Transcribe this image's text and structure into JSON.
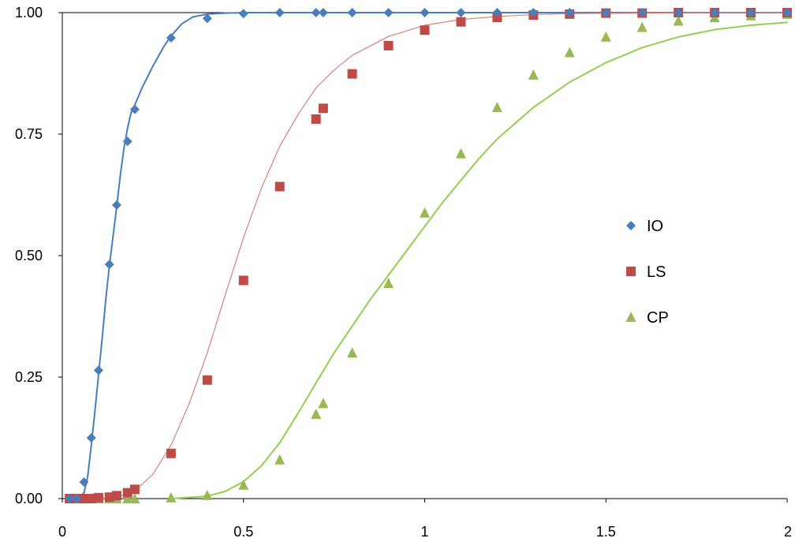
{
  "chart_data": {
    "type": "scatter",
    "title": "",
    "xlabel": "",
    "ylabel": "",
    "xlim": [
      0,
      2
    ],
    "ylim": [
      0,
      1
    ],
    "x_ticks": [
      {
        "value": 0,
        "label": "0"
      },
      {
        "value": 0.5,
        "label": "0.5"
      },
      {
        "value": 1,
        "label": "1"
      },
      {
        "value": 1.5,
        "label": "1.5"
      },
      {
        "value": 2,
        "label": "2"
      }
    ],
    "y_ticks": [
      {
        "value": 0,
        "label": "0.00"
      },
      {
        "value": 0.25,
        "label": "0.25"
      },
      {
        "value": 0.5,
        "label": "0.50"
      },
      {
        "value": 0.75,
        "label": "0.75"
      },
      {
        "value": 1,
        "label": "1.00"
      }
    ],
    "grid": {
      "horizontal_top_line": true,
      "vertical": false
    },
    "legend": {
      "position": "right-middle"
    },
    "series": [
      {
        "name": "IO",
        "marker": "diamond",
        "color": "#4A7EBB",
        "curve_color": "#4A7EBB",
        "points": [
          [
            0.02,
            0.0
          ],
          [
            0.04,
            0.0
          ],
          [
            0.06,
            0.034
          ],
          [
            0.08,
            0.125
          ],
          [
            0.1,
            0.264
          ],
          [
            0.13,
            0.482
          ],
          [
            0.15,
            0.604
          ],
          [
            0.18,
            0.735
          ],
          [
            0.2,
            0.801
          ],
          [
            0.3,
            0.948
          ],
          [
            0.4,
            0.988
          ],
          [
            0.5,
            0.998
          ],
          [
            0.6,
            1.0
          ],
          [
            0.7,
            1.0
          ],
          [
            0.72,
            1.0
          ],
          [
            0.8,
            1.0
          ],
          [
            0.9,
            1.0
          ],
          [
            1.0,
            1.0
          ],
          [
            1.1,
            1.0
          ],
          [
            1.2,
            1.0
          ],
          [
            1.3,
            1.0
          ],
          [
            1.4,
            1.0
          ],
          [
            1.5,
            1.0
          ],
          [
            1.6,
            1.0
          ],
          [
            1.7,
            1.0
          ],
          [
            1.8,
            1.0
          ],
          [
            1.9,
            1.0
          ],
          [
            2.0,
            1.0
          ]
        ],
        "curve": [
          [
            0.04,
            0.0
          ],
          [
            0.06,
            0.012
          ],
          [
            0.07,
            0.045
          ],
          [
            0.08,
            0.11
          ],
          [
            0.09,
            0.18
          ],
          [
            0.1,
            0.255
          ],
          [
            0.11,
            0.33
          ],
          [
            0.12,
            0.41
          ],
          [
            0.13,
            0.48
          ],
          [
            0.14,
            0.54
          ],
          [
            0.15,
            0.6
          ],
          [
            0.16,
            0.665
          ],
          [
            0.17,
            0.72
          ],
          [
            0.18,
            0.762
          ],
          [
            0.19,
            0.795
          ],
          [
            0.2,
            0.81
          ],
          [
            0.22,
            0.845
          ],
          [
            0.25,
            0.89
          ],
          [
            0.28,
            0.93
          ],
          [
            0.3,
            0.952
          ],
          [
            0.33,
            0.977
          ],
          [
            0.36,
            0.991
          ],
          [
            0.4,
            0.997
          ],
          [
            0.45,
            0.999
          ],
          [
            0.5,
            1.0
          ],
          [
            1.0,
            1.0
          ],
          [
            1.5,
            1.0
          ],
          [
            2.0,
            1.0
          ]
        ]
      },
      {
        "name": "LS",
        "marker": "square",
        "color": "#BE4B48",
        "curve_color": "#D9827D",
        "points": [
          [
            0.02,
            0.0
          ],
          [
            0.04,
            0.0
          ],
          [
            0.06,
            0.0
          ],
          [
            0.08,
            0.0
          ],
          [
            0.1,
            0.002
          ],
          [
            0.13,
            0.003
          ],
          [
            0.15,
            0.006
          ],
          [
            0.18,
            0.012
          ],
          [
            0.2,
            0.019
          ],
          [
            0.3,
            0.093
          ],
          [
            0.4,
            0.244
          ],
          [
            0.5,
            0.449
          ],
          [
            0.6,
            0.642
          ],
          [
            0.7,
            0.781
          ],
          [
            0.72,
            0.803
          ],
          [
            0.8,
            0.874
          ],
          [
            0.9,
            0.932
          ],
          [
            1.0,
            0.964
          ],
          [
            1.1,
            0.981
          ],
          [
            1.2,
            0.99
          ],
          [
            1.3,
            0.995
          ],
          [
            1.4,
            0.997
          ],
          [
            1.5,
            0.999
          ],
          [
            1.6,
            0.999
          ],
          [
            1.7,
            1.0
          ],
          [
            1.8,
            1.0
          ],
          [
            1.9,
            1.0
          ],
          [
            2.0,
            1.0
          ]
        ],
        "curve": [
          [
            0.02,
            0.0
          ],
          [
            0.1,
            0.0
          ],
          [
            0.15,
            0.003
          ],
          [
            0.2,
            0.016
          ],
          [
            0.25,
            0.05
          ],
          [
            0.3,
            0.11
          ],
          [
            0.35,
            0.195
          ],
          [
            0.4,
            0.3
          ],
          [
            0.45,
            0.42
          ],
          [
            0.5,
            0.537
          ],
          [
            0.55,
            0.64
          ],
          [
            0.6,
            0.725
          ],
          [
            0.65,
            0.79
          ],
          [
            0.7,
            0.845
          ],
          [
            0.75,
            0.882
          ],
          [
            0.8,
            0.912
          ],
          [
            0.9,
            0.951
          ],
          [
            1.0,
            0.974
          ],
          [
            1.1,
            0.986
          ],
          [
            1.2,
            0.992
          ],
          [
            1.3,
            0.996
          ],
          [
            1.4,
            0.998
          ],
          [
            1.6,
            0.999
          ],
          [
            1.8,
            1.0
          ],
          [
            2.0,
            1.0
          ]
        ]
      },
      {
        "name": "CP",
        "marker": "triangle",
        "color": "#98B954",
        "curve_color": "#92D050",
        "points": [
          [
            0.02,
            0.0
          ],
          [
            0.04,
            0.0
          ],
          [
            0.06,
            0.0
          ],
          [
            0.08,
            0.0
          ],
          [
            0.1,
            0.0
          ],
          [
            0.13,
            0.0
          ],
          [
            0.15,
            0.0
          ],
          [
            0.18,
            0.0
          ],
          [
            0.2,
            0.0
          ],
          [
            0.3,
            0.002
          ],
          [
            0.4,
            0.007
          ],
          [
            0.5,
            0.028
          ],
          [
            0.6,
            0.08
          ],
          [
            0.7,
            0.174
          ],
          [
            0.72,
            0.196
          ],
          [
            0.8,
            0.3
          ],
          [
            0.9,
            0.443
          ],
          [
            1.0,
            0.588
          ],
          [
            1.1,
            0.71
          ],
          [
            1.2,
            0.805
          ],
          [
            1.3,
            0.872
          ],
          [
            1.4,
            0.918
          ],
          [
            1.5,
            0.95
          ],
          [
            1.6,
            0.97
          ],
          [
            1.7,
            0.983
          ],
          [
            1.8,
            0.99
          ],
          [
            1.9,
            0.994
          ],
          [
            2.0,
            0.997
          ]
        ],
        "curve": [
          [
            0.3,
            0.0
          ],
          [
            0.4,
            0.005
          ],
          [
            0.45,
            0.015
          ],
          [
            0.5,
            0.035
          ],
          [
            0.55,
            0.068
          ],
          [
            0.6,
            0.115
          ],
          [
            0.65,
            0.175
          ],
          [
            0.7,
            0.238
          ],
          [
            0.75,
            0.3
          ],
          [
            0.8,
            0.355
          ],
          [
            0.85,
            0.41
          ],
          [
            0.9,
            0.46
          ],
          [
            0.95,
            0.51
          ],
          [
            1.0,
            0.56
          ],
          [
            1.05,
            0.61
          ],
          [
            1.1,
            0.655
          ],
          [
            1.15,
            0.7
          ],
          [
            1.2,
            0.74
          ],
          [
            1.3,
            0.805
          ],
          [
            1.4,
            0.857
          ],
          [
            1.5,
            0.897
          ],
          [
            1.6,
            0.928
          ],
          [
            1.7,
            0.95
          ],
          [
            1.8,
            0.965
          ],
          [
            1.9,
            0.974
          ],
          [
            2.0,
            0.98
          ]
        ]
      }
    ]
  }
}
